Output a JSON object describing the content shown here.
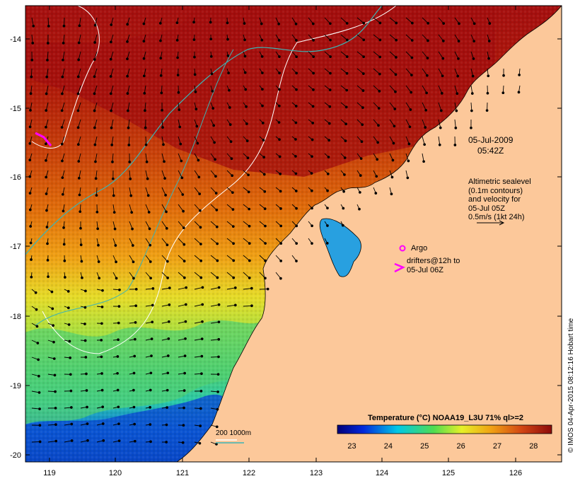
{
  "map": {
    "date": "05-Jul-2009",
    "time": "05:42Z",
    "lon_ticks": [
      "119",
      "120",
      "121",
      "122",
      "123",
      "124",
      "125",
      "126"
    ],
    "lat_ticks": [
      "-14",
      "-15",
      "-16",
      "-17",
      "-18",
      "-19",
      "-20"
    ],
    "legend_notes": {
      "altimetry": [
        "Altimetric sealevel",
        "(0.1m contours)",
        "and velocity for",
        "05-Jul 05Z",
        "0.5m/s (1kt 24h)"
      ],
      "argo": "Argo",
      "drifters": [
        "drifters@12h to",
        "05-Jul 06Z"
      ]
    },
    "isobath_label": "200  1000m",
    "colorbar": {
      "title": "Temperature (°C) NOAA19_L3U 71% ql>=2",
      "ticks": [
        "23",
        "24",
        "25",
        "26",
        "27",
        "28"
      ],
      "min": 22.6,
      "max": 28.5
    },
    "copyright": "© IMOS 04-Apr-2015 08:12:16 Hobart time",
    "colors": {
      "land": "#fcc89a",
      "sst_hot": "#a50f0f",
      "sst_warm": "#e8780a",
      "sst_mid": "#e6dc28",
      "sst_cool": "#28c8aa",
      "sst_cold": "#001a96",
      "drifter": "#ff00ff",
      "isobath_200": "#ffffff",
      "isobath_1000": "#3cb4b4"
    }
  }
}
